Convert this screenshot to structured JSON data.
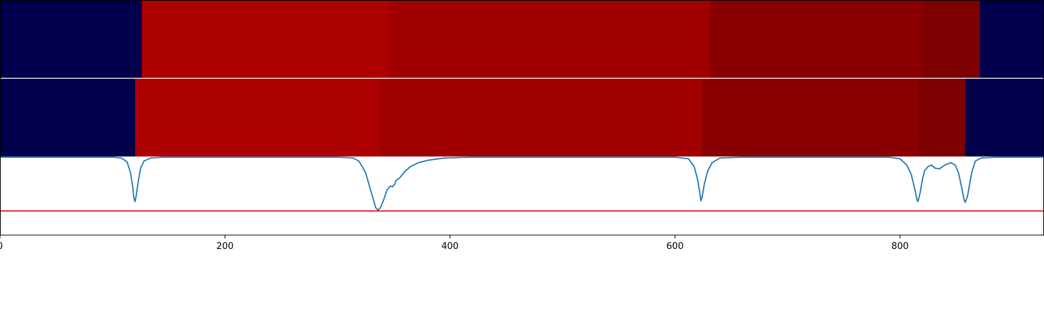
{
  "chart_data": {
    "type": "heatmap",
    "xlim": [
      0,
      928
    ],
    "x_ticks": [
      0,
      200,
      400,
      600,
      800
    ],
    "x_tick_labels": [
      "0",
      "200",
      "400",
      "600",
      "800"
    ],
    "grid": false,
    "colormap": "seismic",
    "heatmap_rows": [
      {
        "segments": [
          {
            "x0": 0,
            "x1": 126,
            "color": "#00004c"
          },
          {
            "x0": 126,
            "x1": 346,
            "color": "#ad0000"
          },
          {
            "x0": 346,
            "x1": 631,
            "color": "#a10000"
          },
          {
            "x0": 631,
            "x1": 821,
            "color": "#8a0000"
          },
          {
            "x0": 821,
            "x1": 871,
            "color": "#7c0000"
          },
          {
            "x0": 871,
            "x1": 928,
            "color": "#00004c"
          }
        ]
      },
      {
        "segments": [
          {
            "x0": 0,
            "x1": 120,
            "color": "#00004c"
          },
          {
            "x0": 120,
            "x1": 337,
            "color": "#ad0000"
          },
          {
            "x0": 337,
            "x1": 624,
            "color": "#a10000"
          },
          {
            "x0": 624,
            "x1": 816,
            "color": "#8a0000"
          },
          {
            "x0": 816,
            "x1": 858,
            "color": "#7c0000"
          },
          {
            "x0": 858,
            "x1": 928,
            "color": "#00004c"
          }
        ]
      }
    ],
    "line": {
      "color": "#1f77b4",
      "ylim": [
        0,
        1
      ],
      "baseline": 1.0,
      "points": [
        [
          0,
          1.0
        ],
        [
          100,
          1.0
        ],
        [
          108,
          0.99
        ],
        [
          113,
          0.94
        ],
        [
          116,
          0.8
        ],
        [
          118,
          0.62
        ],
        [
          119,
          0.48
        ],
        [
          120,
          0.43
        ],
        [
          121,
          0.5
        ],
        [
          123,
          0.7
        ],
        [
          125,
          0.86
        ],
        [
          128,
          0.95
        ],
        [
          134,
          0.99
        ],
        [
          145,
          1.0
        ],
        [
          300,
          1.0
        ],
        [
          314,
          0.99
        ],
        [
          319,
          0.95
        ],
        [
          322,
          0.88
        ],
        [
          325,
          0.8
        ],
        [
          328,
          0.65
        ],
        [
          331,
          0.5
        ],
        [
          334,
          0.35
        ],
        [
          336,
          0.32
        ],
        [
          338,
          0.35
        ],
        [
          341,
          0.45
        ],
        [
          344,
          0.58
        ],
        [
          347,
          0.63
        ],
        [
          349,
          0.62
        ],
        [
          351,
          0.66
        ],
        [
          352,
          0.7
        ],
        [
          355,
          0.73
        ],
        [
          360,
          0.82
        ],
        [
          365,
          0.88
        ],
        [
          372,
          0.93
        ],
        [
          380,
          0.96
        ],
        [
          395,
          0.99
        ],
        [
          420,
          1.0
        ],
        [
          600,
          1.0
        ],
        [
          612,
          0.98
        ],
        [
          617,
          0.88
        ],
        [
          620,
          0.72
        ],
        [
          622,
          0.55
        ],
        [
          623,
          0.44
        ],
        [
          624,
          0.48
        ],
        [
          626,
          0.65
        ],
        [
          629,
          0.82
        ],
        [
          633,
          0.93
        ],
        [
          640,
          0.99
        ],
        [
          660,
          1.0
        ],
        [
          790,
          1.0
        ],
        [
          800,
          0.98
        ],
        [
          806,
          0.9
        ],
        [
          810,
          0.78
        ],
        [
          813,
          0.6
        ],
        [
          815,
          0.46
        ],
        [
          816,
          0.43
        ],
        [
          818,
          0.55
        ],
        [
          820,
          0.72
        ],
        [
          822,
          0.83
        ],
        [
          825,
          0.88
        ],
        [
          828,
          0.9
        ],
        [
          831,
          0.86
        ],
        [
          835,
          0.85
        ],
        [
          840,
          0.9
        ],
        [
          845,
          0.93
        ],
        [
          849,
          0.9
        ],
        [
          852,
          0.8
        ],
        [
          855,
          0.6
        ],
        [
          857,
          0.45
        ],
        [
          858,
          0.42
        ],
        [
          860,
          0.5
        ],
        [
          862,
          0.66
        ],
        [
          864,
          0.82
        ],
        [
          867,
          0.95
        ],
        [
          872,
          0.99
        ],
        [
          885,
          1.0
        ],
        [
          928,
          1.0
        ]
      ]
    },
    "threshold": {
      "y": 0.31,
      "color": "#e00000"
    }
  }
}
